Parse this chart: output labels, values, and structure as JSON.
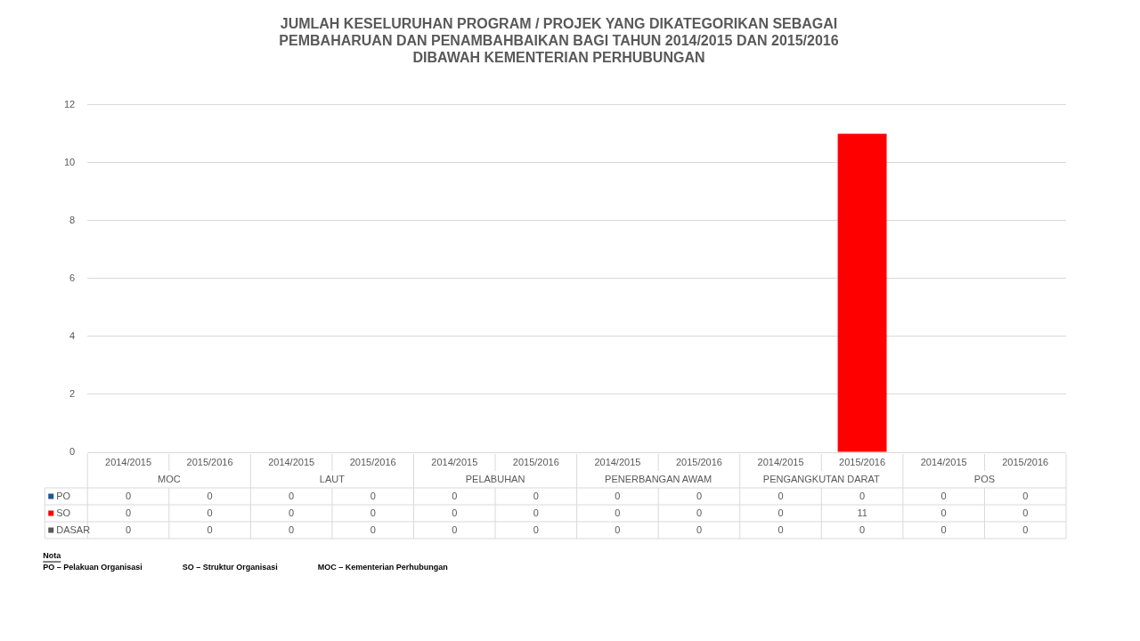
{
  "chart_data": {
    "type": "bar",
    "title": "JUMLAH KESELURUHAN PROGRAM / PROJEK YANG DIKATEGORIKAN SEBAGAI\nPEMBAHARUAN DAN PENAMBAHBAIKAN BAGI TAHUN 2014/2015 DAN 2015/2016\nDIBAWAH KEMENTERIAN PERHUBUNGAN",
    "categories": [
      "2014/2015",
      "2015/2016",
      "2014/2015",
      "2015/2016",
      "2014/2015",
      "2015/2016",
      "2014/2015",
      "2015/2016",
      "2014/2015",
      "2015/2016",
      "2014/2015",
      "2015/2016"
    ],
    "series": [
      {
        "name": "PO",
        "color": "#1f5792",
        "values": [
          0,
          0,
          0,
          0,
          0,
          0,
          0,
          0,
          0,
          0,
          0,
          0
        ]
      },
      {
        "name": "SO",
        "color": "#ff0000",
        "values": [
          0,
          0,
          0,
          0,
          0,
          0,
          0,
          0,
          0,
          11,
          0,
          0
        ]
      },
      {
        "name": "DASAR",
        "color": "#595959",
        "values": [
          0,
          0,
          0,
          0,
          0,
          0,
          0,
          0,
          0,
          0,
          0,
          0
        ]
      }
    ],
    "stacked": true,
    "ylim": [
      0,
      12
    ],
    "yticks": [
      0,
      2,
      4,
      6,
      8,
      10,
      12
    ],
    "grid": "y",
    "legend": "bottom",
    "data_labels": true,
    "annotations": [
      "MOC",
      "LAUT",
      "PELABUHAN",
      "PENERBANGAN AWAM",
      "PENGANGKUTAN DARAT",
      "POS",
      "Nota",
      "PO – Pelakuan Organisasi",
      "SO – Struktur Organisasi",
      "MOC – Kementerian Perhubungan"
    ]
  }
}
